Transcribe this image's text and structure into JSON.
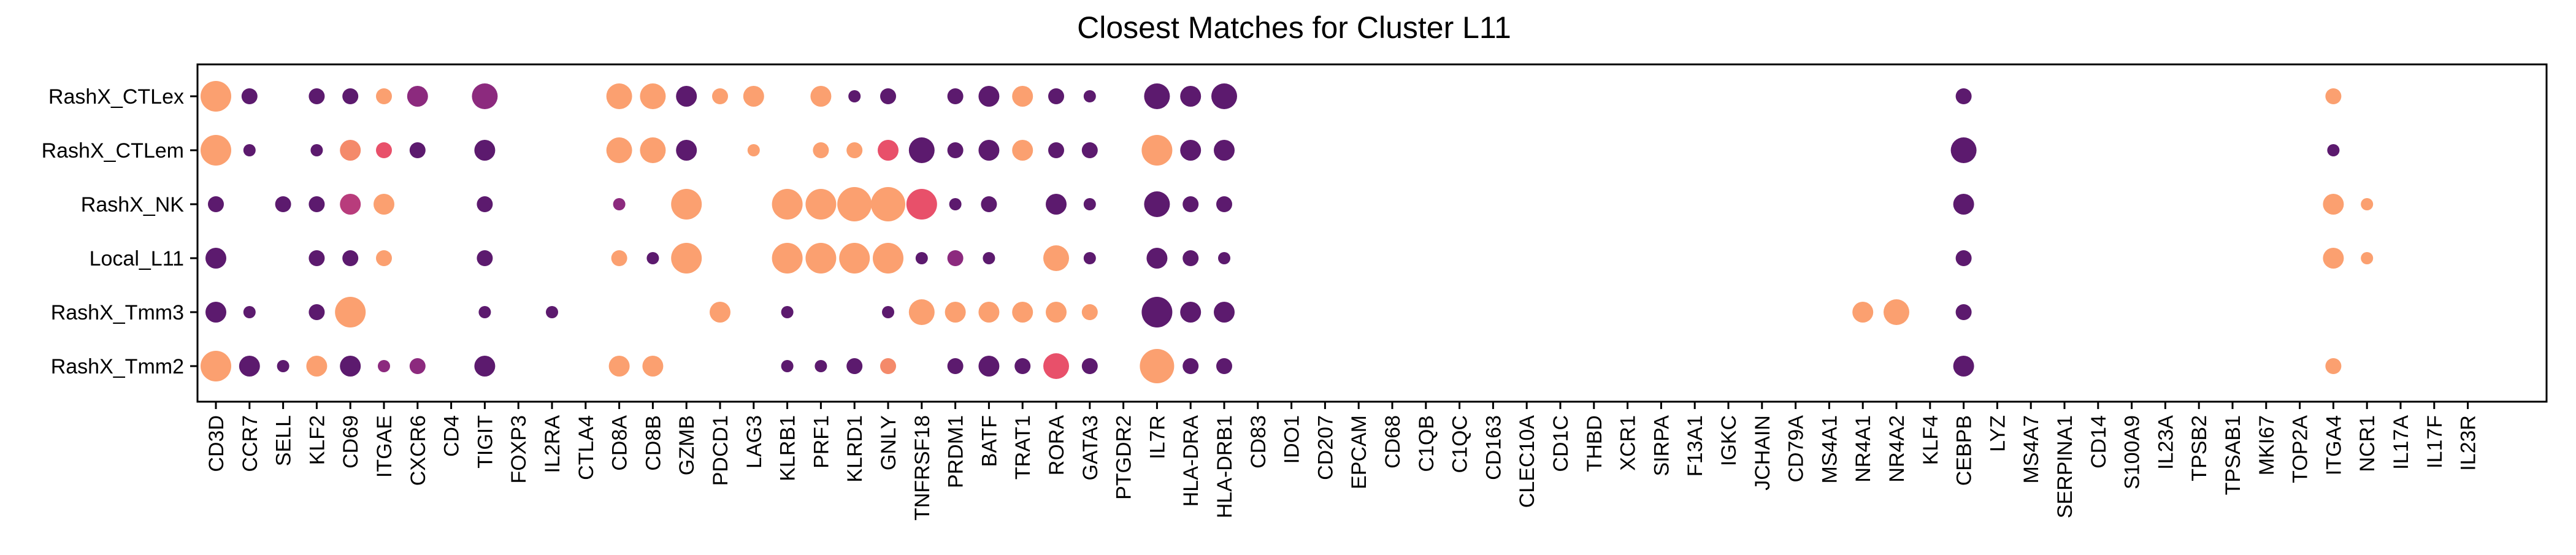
{
  "chart_data": {
    "type": "dotplot",
    "title": "Closest Matches for Cluster L11",
    "xlabel": "",
    "ylabel": "",
    "grid": false,
    "legend": "none",
    "x_categories": [
      "CD3D",
      "CCR7",
      "SELL",
      "KLF2",
      "CD69",
      "ITGAE",
      "CXCR6",
      "CD4",
      "TIGIT",
      "FOXP3",
      "IL2RA",
      "CTLA4",
      "CD8A",
      "CD8B",
      "GZMB",
      "PDCD1",
      "LAG3",
      "KLRB1",
      "PRF1",
      "KLRD1",
      "GNLY",
      "TNFRSF18",
      "PRDM1",
      "BATF",
      "TRAT1",
      "RORA",
      "GATA3",
      "PTGDR2",
      "IL7R",
      "HLA-DRA",
      "HLA-DRB1",
      "CD83",
      "IDO1",
      "CD207",
      "EPCAM",
      "CD68",
      "C1QB",
      "C1QC",
      "CD163",
      "CLEC10A",
      "CD1C",
      "THBD",
      "XCR1",
      "SIRPA",
      "F13A1",
      "IGKC",
      "JCHAIN",
      "CD79A",
      "MS4A1",
      "NR4A1",
      "NR4A2",
      "KLF4",
      "CEBPB",
      "LYZ",
      "MS4A7",
      "SERPINA1",
      "CD14",
      "S100A9",
      "IL23A",
      "TPSB2",
      "TPSAB1",
      "MKI67",
      "TOP2A",
      "ITGA4",
      "NCR1",
      "IL17A",
      "IL17F",
      "IL23R"
    ],
    "y_categories": [
      "RashX_CTLex",
      "RashX_CTLem",
      "RashX_NK",
      "Local_L11",
      "RashX_Tmm3",
      "RashX_Tmm2"
    ],
    "colors": {
      "dark": "#5c1a6e",
      "purple": "#8c2a7e",
      "magenta": "#b83c7c",
      "red": "#e8506a",
      "salmon": "#f48a6a",
      "peach": "#fba070"
    },
    "points": [
      {
        "gene": "CD3D",
        "group": "RashX_CTLex",
        "size": 5,
        "color": "peach"
      },
      {
        "gene": "CCR7",
        "group": "RashX_CTLex",
        "size": 2,
        "color": "dark"
      },
      {
        "gene": "KLF2",
        "group": "RashX_CTLex",
        "size": 2,
        "color": "dark"
      },
      {
        "gene": "CD69",
        "group": "RashX_CTLex",
        "size": 2,
        "color": "dark"
      },
      {
        "gene": "ITGAE",
        "group": "RashX_CTLex",
        "size": 2,
        "color": "peach"
      },
      {
        "gene": "CXCR6",
        "group": "RashX_CTLex",
        "size": 3,
        "color": "purple"
      },
      {
        "gene": "TIGIT",
        "group": "RashX_CTLex",
        "size": 4,
        "color": "purple"
      },
      {
        "gene": "CD8A",
        "group": "RashX_CTLex",
        "size": 4,
        "color": "peach"
      },
      {
        "gene": "CD8B",
        "group": "RashX_CTLex",
        "size": 4,
        "color": "peach"
      },
      {
        "gene": "GZMB",
        "group": "RashX_CTLex",
        "size": 3,
        "color": "dark"
      },
      {
        "gene": "PDCD1",
        "group": "RashX_CTLex",
        "size": 2,
        "color": "peach"
      },
      {
        "gene": "LAG3",
        "group": "RashX_CTLex",
        "size": 3,
        "color": "peach"
      },
      {
        "gene": "PRF1",
        "group": "RashX_CTLex",
        "size": 3,
        "color": "peach"
      },
      {
        "gene": "KLRD1",
        "group": "RashX_CTLex",
        "size": 1,
        "color": "dark"
      },
      {
        "gene": "GNLY",
        "group": "RashX_CTLex",
        "size": 2,
        "color": "dark"
      },
      {
        "gene": "PRDM1",
        "group": "RashX_CTLex",
        "size": 2,
        "color": "dark"
      },
      {
        "gene": "BATF",
        "group": "RashX_CTLex",
        "size": 3,
        "color": "dark"
      },
      {
        "gene": "TRAT1",
        "group": "RashX_CTLex",
        "size": 3,
        "color": "peach"
      },
      {
        "gene": "RORA",
        "group": "RashX_CTLex",
        "size": 2,
        "color": "dark"
      },
      {
        "gene": "GATA3",
        "group": "RashX_CTLex",
        "size": 1,
        "color": "dark"
      },
      {
        "gene": "IL7R",
        "group": "RashX_CTLex",
        "size": 4,
        "color": "dark"
      },
      {
        "gene": "HLA-DRA",
        "group": "RashX_CTLex",
        "size": 3,
        "color": "dark"
      },
      {
        "gene": "HLA-DRB1",
        "group": "RashX_CTLex",
        "size": 4,
        "color": "dark"
      },
      {
        "gene": "CEBPB",
        "group": "RashX_CTLex",
        "size": 2,
        "color": "dark"
      },
      {
        "gene": "ITGA4",
        "group": "RashX_CTLex",
        "size": 2,
        "color": "peach"
      },
      {
        "gene": "CD3D",
        "group": "RashX_CTLem",
        "size": 5,
        "color": "peach"
      },
      {
        "gene": "CCR7",
        "group": "RashX_CTLem",
        "size": 1,
        "color": "dark"
      },
      {
        "gene": "KLF2",
        "group": "RashX_CTLem",
        "size": 1,
        "color": "dark"
      },
      {
        "gene": "CD69",
        "group": "RashX_CTLem",
        "size": 3,
        "color": "salmon"
      },
      {
        "gene": "ITGAE",
        "group": "RashX_CTLem",
        "size": 2,
        "color": "red"
      },
      {
        "gene": "CXCR6",
        "group": "RashX_CTLem",
        "size": 2,
        "color": "dark"
      },
      {
        "gene": "TIGIT",
        "group": "RashX_CTLem",
        "size": 3,
        "color": "dark"
      },
      {
        "gene": "CD8A",
        "group": "RashX_CTLem",
        "size": 4,
        "color": "peach"
      },
      {
        "gene": "CD8B",
        "group": "RashX_CTLem",
        "size": 4,
        "color": "peach"
      },
      {
        "gene": "GZMB",
        "group": "RashX_CTLem",
        "size": 3,
        "color": "dark"
      },
      {
        "gene": "LAG3",
        "group": "RashX_CTLem",
        "size": 1,
        "color": "peach"
      },
      {
        "gene": "PRF1",
        "group": "RashX_CTLem",
        "size": 2,
        "color": "peach"
      },
      {
        "gene": "KLRD1",
        "group": "RashX_CTLem",
        "size": 2,
        "color": "peach"
      },
      {
        "gene": "GNLY",
        "group": "RashX_CTLem",
        "size": 3,
        "color": "red"
      },
      {
        "gene": "TNFRSF18",
        "group": "RashX_CTLem",
        "size": 4,
        "color": "dark"
      },
      {
        "gene": "PRDM1",
        "group": "RashX_CTLem",
        "size": 2,
        "color": "dark"
      },
      {
        "gene": "BATF",
        "group": "RashX_CTLem",
        "size": 3,
        "color": "dark"
      },
      {
        "gene": "TRAT1",
        "group": "RashX_CTLem",
        "size": 3,
        "color": "peach"
      },
      {
        "gene": "RORA",
        "group": "RashX_CTLem",
        "size": 2,
        "color": "dark"
      },
      {
        "gene": "GATA3",
        "group": "RashX_CTLem",
        "size": 2,
        "color": "dark"
      },
      {
        "gene": "IL7R",
        "group": "RashX_CTLem",
        "size": 5,
        "color": "peach"
      },
      {
        "gene": "HLA-DRA",
        "group": "RashX_CTLem",
        "size": 3,
        "color": "dark"
      },
      {
        "gene": "HLA-DRB1",
        "group": "RashX_CTLem",
        "size": 3,
        "color": "dark"
      },
      {
        "gene": "CEBPB",
        "group": "RashX_CTLem",
        "size": 4,
        "color": "dark"
      },
      {
        "gene": "ITGA4",
        "group": "RashX_CTLem",
        "size": 1,
        "color": "dark"
      },
      {
        "gene": "CD3D",
        "group": "RashX_NK",
        "size": 2,
        "color": "dark"
      },
      {
        "gene": "SELL",
        "group": "RashX_NK",
        "size": 2,
        "color": "dark"
      },
      {
        "gene": "KLF2",
        "group": "RashX_NK",
        "size": 2,
        "color": "dark"
      },
      {
        "gene": "CD69",
        "group": "RashX_NK",
        "size": 3,
        "color": "magenta"
      },
      {
        "gene": "ITGAE",
        "group": "RashX_NK",
        "size": 3,
        "color": "peach"
      },
      {
        "gene": "TIGIT",
        "group": "RashX_NK",
        "size": 2,
        "color": "dark"
      },
      {
        "gene": "CD8A",
        "group": "RashX_NK",
        "size": 1,
        "color": "purple"
      },
      {
        "gene": "GZMB",
        "group": "RashX_NK",
        "size": 5,
        "color": "peach"
      },
      {
        "gene": "KLRB1",
        "group": "RashX_NK",
        "size": 5,
        "color": "peach"
      },
      {
        "gene": "PRF1",
        "group": "RashX_NK",
        "size": 5,
        "color": "peach"
      },
      {
        "gene": "KLRD1",
        "group": "RashX_NK",
        "size": 6,
        "color": "peach"
      },
      {
        "gene": "GNLY",
        "group": "RashX_NK",
        "size": 6,
        "color": "peach"
      },
      {
        "gene": "TNFRSF18",
        "group": "RashX_NK",
        "size": 5,
        "color": "red"
      },
      {
        "gene": "PRDM1",
        "group": "RashX_NK",
        "size": 1,
        "color": "dark"
      },
      {
        "gene": "BATF",
        "group": "RashX_NK",
        "size": 2,
        "color": "dark"
      },
      {
        "gene": "RORA",
        "group": "RashX_NK",
        "size": 3,
        "color": "dark"
      },
      {
        "gene": "GATA3",
        "group": "RashX_NK",
        "size": 1,
        "color": "dark"
      },
      {
        "gene": "IL7R",
        "group": "RashX_NK",
        "size": 4,
        "color": "dark"
      },
      {
        "gene": "HLA-DRA",
        "group": "RashX_NK",
        "size": 2,
        "color": "dark"
      },
      {
        "gene": "HLA-DRB1",
        "group": "RashX_NK",
        "size": 2,
        "color": "dark"
      },
      {
        "gene": "CEBPB",
        "group": "RashX_NK",
        "size": 3,
        "color": "dark"
      },
      {
        "gene": "ITGA4",
        "group": "RashX_NK",
        "size": 3,
        "color": "peach"
      },
      {
        "gene": "NCR1",
        "group": "RashX_NK",
        "size": 1,
        "color": "peach"
      },
      {
        "gene": "CD3D",
        "group": "Local_L11",
        "size": 3,
        "color": "dark"
      },
      {
        "gene": "KLF2",
        "group": "Local_L11",
        "size": 2,
        "color": "dark"
      },
      {
        "gene": "CD69",
        "group": "Local_L11",
        "size": 2,
        "color": "dark"
      },
      {
        "gene": "ITGAE",
        "group": "Local_L11",
        "size": 2,
        "color": "peach"
      },
      {
        "gene": "TIGIT",
        "group": "Local_L11",
        "size": 2,
        "color": "dark"
      },
      {
        "gene": "CD8A",
        "group": "Local_L11",
        "size": 2,
        "color": "peach"
      },
      {
        "gene": "CD8B",
        "group": "Local_L11",
        "size": 1,
        "color": "dark"
      },
      {
        "gene": "GZMB",
        "group": "Local_L11",
        "size": 5,
        "color": "peach"
      },
      {
        "gene": "KLRB1",
        "group": "Local_L11",
        "size": 5,
        "color": "peach"
      },
      {
        "gene": "PRF1",
        "group": "Local_L11",
        "size": 5,
        "color": "peach"
      },
      {
        "gene": "KLRD1",
        "group": "Local_L11",
        "size": 5,
        "color": "peach"
      },
      {
        "gene": "GNLY",
        "group": "Local_L11",
        "size": 5,
        "color": "peach"
      },
      {
        "gene": "TNFRSF18",
        "group": "Local_L11",
        "size": 1,
        "color": "dark"
      },
      {
        "gene": "PRDM1",
        "group": "Local_L11",
        "size": 2,
        "color": "purple"
      },
      {
        "gene": "BATF",
        "group": "Local_L11",
        "size": 1,
        "color": "dark"
      },
      {
        "gene": "RORA",
        "group": "Local_L11",
        "size": 4,
        "color": "peach"
      },
      {
        "gene": "GATA3",
        "group": "Local_L11",
        "size": 1,
        "color": "dark"
      },
      {
        "gene": "IL7R",
        "group": "Local_L11",
        "size": 3,
        "color": "dark"
      },
      {
        "gene": "HLA-DRA",
        "group": "Local_L11",
        "size": 2,
        "color": "dark"
      },
      {
        "gene": "HLA-DRB1",
        "group": "Local_L11",
        "size": 1,
        "color": "dark"
      },
      {
        "gene": "CEBPB",
        "group": "Local_L11",
        "size": 2,
        "color": "dark"
      },
      {
        "gene": "ITGA4",
        "group": "Local_L11",
        "size": 3,
        "color": "peach"
      },
      {
        "gene": "NCR1",
        "group": "Local_L11",
        "size": 1,
        "color": "peach"
      },
      {
        "gene": "CD3D",
        "group": "RashX_Tmm3",
        "size": 3,
        "color": "dark"
      },
      {
        "gene": "CCR7",
        "group": "RashX_Tmm3",
        "size": 1,
        "color": "dark"
      },
      {
        "gene": "KLF2",
        "group": "RashX_Tmm3",
        "size": 2,
        "color": "dark"
      },
      {
        "gene": "CD69",
        "group": "RashX_Tmm3",
        "size": 5,
        "color": "peach"
      },
      {
        "gene": "TIGIT",
        "group": "RashX_Tmm3",
        "size": 1,
        "color": "dark"
      },
      {
        "gene": "IL2RA",
        "group": "RashX_Tmm3",
        "size": 1,
        "color": "dark"
      },
      {
        "gene": "PDCD1",
        "group": "RashX_Tmm3",
        "size": 3,
        "color": "peach"
      },
      {
        "gene": "KLRB1",
        "group": "RashX_Tmm3",
        "size": 1,
        "color": "dark"
      },
      {
        "gene": "GNLY",
        "group": "RashX_Tmm3",
        "size": 1,
        "color": "dark"
      },
      {
        "gene": "TNFRSF18",
        "group": "RashX_Tmm3",
        "size": 4,
        "color": "peach"
      },
      {
        "gene": "PRDM1",
        "group": "RashX_Tmm3",
        "size": 3,
        "color": "peach"
      },
      {
        "gene": "BATF",
        "group": "RashX_Tmm3",
        "size": 3,
        "color": "peach"
      },
      {
        "gene": "TRAT1",
        "group": "RashX_Tmm3",
        "size": 3,
        "color": "peach"
      },
      {
        "gene": "RORA",
        "group": "RashX_Tmm3",
        "size": 3,
        "color": "peach"
      },
      {
        "gene": "GATA3",
        "group": "RashX_Tmm3",
        "size": 2,
        "color": "peach"
      },
      {
        "gene": "IL7R",
        "group": "RashX_Tmm3",
        "size": 5,
        "color": "dark"
      },
      {
        "gene": "HLA-DRA",
        "group": "RashX_Tmm3",
        "size": 3,
        "color": "dark"
      },
      {
        "gene": "HLA-DRB1",
        "group": "RashX_Tmm3",
        "size": 3,
        "color": "dark"
      },
      {
        "gene": "NR4A1",
        "group": "RashX_Tmm3",
        "size": 3,
        "color": "peach"
      },
      {
        "gene": "NR4A2",
        "group": "RashX_Tmm3",
        "size": 4,
        "color": "peach"
      },
      {
        "gene": "CEBPB",
        "group": "RashX_Tmm3",
        "size": 2,
        "color": "dark"
      },
      {
        "gene": "CD3D",
        "group": "RashX_Tmm2",
        "size": 5,
        "color": "peach"
      },
      {
        "gene": "CCR7",
        "group": "RashX_Tmm2",
        "size": 3,
        "color": "dark"
      },
      {
        "gene": "SELL",
        "group": "RashX_Tmm2",
        "size": 1,
        "color": "dark"
      },
      {
        "gene": "KLF2",
        "group": "RashX_Tmm2",
        "size": 3,
        "color": "peach"
      },
      {
        "gene": "CD69",
        "group": "RashX_Tmm2",
        "size": 3,
        "color": "dark"
      },
      {
        "gene": "ITGAE",
        "group": "RashX_Tmm2",
        "size": 1,
        "color": "purple"
      },
      {
        "gene": "CXCR6",
        "group": "RashX_Tmm2",
        "size": 2,
        "color": "purple"
      },
      {
        "gene": "TIGIT",
        "group": "RashX_Tmm2",
        "size": 3,
        "color": "dark"
      },
      {
        "gene": "CD8A",
        "group": "RashX_Tmm2",
        "size": 3,
        "color": "peach"
      },
      {
        "gene": "CD8B",
        "group": "RashX_Tmm2",
        "size": 3,
        "color": "peach"
      },
      {
        "gene": "KLRB1",
        "group": "RashX_Tmm2",
        "size": 1,
        "color": "dark"
      },
      {
        "gene": "PRF1",
        "group": "RashX_Tmm2",
        "size": 1,
        "color": "dark"
      },
      {
        "gene": "KLRD1",
        "group": "RashX_Tmm2",
        "size": 2,
        "color": "dark"
      },
      {
        "gene": "GNLY",
        "group": "RashX_Tmm2",
        "size": 2,
        "color": "salmon"
      },
      {
        "gene": "PRDM1",
        "group": "RashX_Tmm2",
        "size": 2,
        "color": "dark"
      },
      {
        "gene": "BATF",
        "group": "RashX_Tmm2",
        "size": 3,
        "color": "dark"
      },
      {
        "gene": "TRAT1",
        "group": "RashX_Tmm2",
        "size": 2,
        "color": "dark"
      },
      {
        "gene": "RORA",
        "group": "RashX_Tmm2",
        "size": 4,
        "color": "red"
      },
      {
        "gene": "GATA3",
        "group": "RashX_Tmm2",
        "size": 2,
        "color": "dark"
      },
      {
        "gene": "IL7R",
        "group": "RashX_Tmm2",
        "size": 6,
        "color": "peach"
      },
      {
        "gene": "HLA-DRA",
        "group": "RashX_Tmm2",
        "size": 2,
        "color": "dark"
      },
      {
        "gene": "HLA-DRB1",
        "group": "RashX_Tmm2",
        "size": 2,
        "color": "dark"
      },
      {
        "gene": "CEBPB",
        "group": "RashX_Tmm2",
        "size": 3,
        "color": "dark"
      },
      {
        "gene": "ITGA4",
        "group": "RashX_Tmm2",
        "size": 2,
        "color": "peach"
      }
    ]
  }
}
